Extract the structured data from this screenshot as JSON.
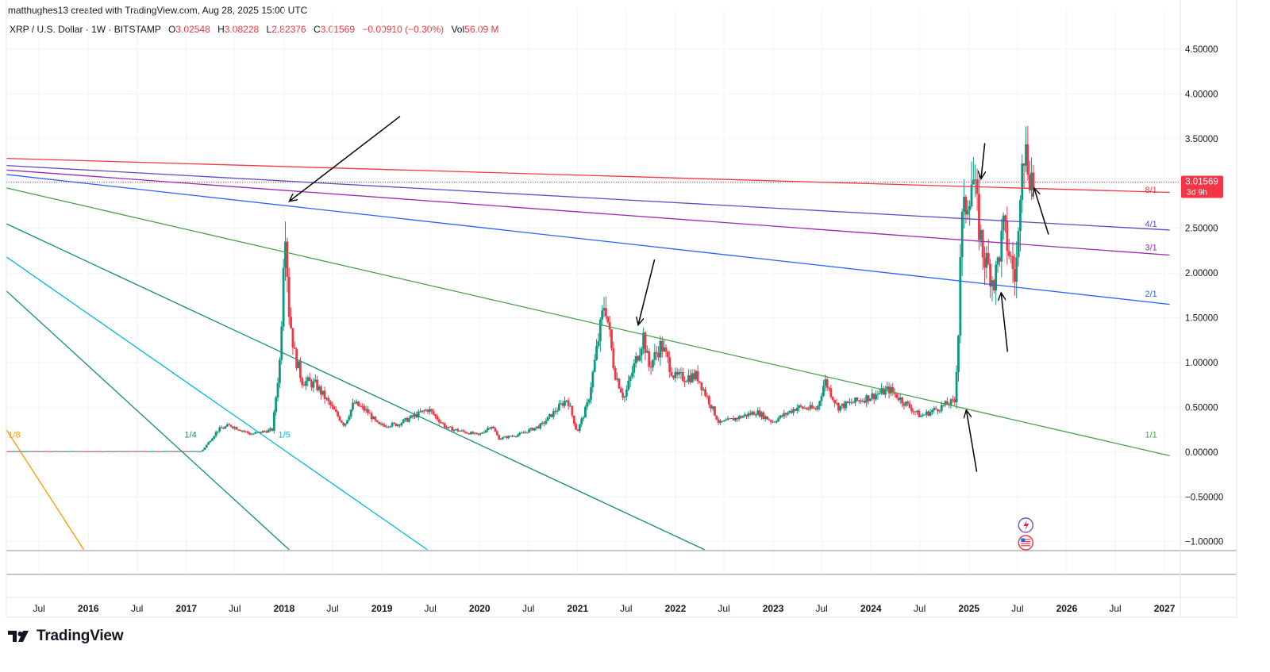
{
  "header": {
    "credit": "matthughes13 created with TradingView.com, Aug 28, 2025 15:00 UTC",
    "symbol": "XRP / U.S. Dollar · 1W · BITSTAMP",
    "open_label": "O",
    "open": "3.02548",
    "high_label": "H",
    "high": "3.08228",
    "low_label": "L",
    "low": "2.82376",
    "close_label": "C",
    "close": "3.01569",
    "change": "−0.00910 (−0.30%)",
    "vol_label": "Vol",
    "vol": "56.09 M"
  },
  "brand": {
    "name": "TradingView",
    "icon": "tradingview-logo-icon"
  },
  "price_badge": {
    "value": "3.01569",
    "countdown": "3d 9h",
    "color": "#f23645"
  },
  "colors": {
    "up": "#089981",
    "down": "#f23645",
    "grid": "#f0f3fa",
    "axis_text": "#131722"
  },
  "chart_data": {
    "type": "candlestick",
    "title": "",
    "y_axis": {
      "range": [
        -1.1,
        4.65
      ],
      "ticks": [
        "4.50000",
        "4.00000",
        "3.50000",
        "3.00000",
        "2.50000",
        "2.00000",
        "1.50000",
        "1.00000",
        "0.50000",
        "0.00000",
        "−0.50000",
        "−1.00000"
      ],
      "tick_values": [
        4.5,
        4.0,
        3.5,
        3.0,
        2.5,
        2.0,
        1.5,
        1.0,
        0.5,
        0.0,
        -0.5,
        -1.0
      ]
    },
    "x_axis": {
      "range": [
        "2015-03-01",
        "2027-03-01"
      ],
      "ticks": [
        {
          "label": "Jul",
          "date": "2015-07-01",
          "major": false
        },
        {
          "label": "2016",
          "date": "2016-01-01",
          "major": true
        },
        {
          "label": "Jul",
          "date": "2016-07-01",
          "major": false
        },
        {
          "label": "2017",
          "date": "2017-01-01",
          "major": true
        },
        {
          "label": "Jul",
          "date": "2017-07-01",
          "major": false
        },
        {
          "label": "2018",
          "date": "2018-01-01",
          "major": true
        },
        {
          "label": "Jul",
          "date": "2018-07-01",
          "major": false
        },
        {
          "label": "2019",
          "date": "2019-01-01",
          "major": true
        },
        {
          "label": "Jul",
          "date": "2019-07-01",
          "major": false
        },
        {
          "label": "2020",
          "date": "2020-01-01",
          "major": true
        },
        {
          "label": "Jul",
          "date": "2020-07-01",
          "major": false
        },
        {
          "label": "2021",
          "date": "2021-01-01",
          "major": true
        },
        {
          "label": "Jul",
          "date": "2021-07-01",
          "major": false
        },
        {
          "label": "2022",
          "date": "2022-01-01",
          "major": true
        },
        {
          "label": "Jul",
          "date": "2022-07-01",
          "major": false
        },
        {
          "label": "2023",
          "date": "2023-01-01",
          "major": true
        },
        {
          "label": "Jul",
          "date": "2023-07-01",
          "major": false
        },
        {
          "label": "2024",
          "date": "2024-01-01",
          "major": true
        },
        {
          "label": "Jul",
          "date": "2024-07-01",
          "major": false
        },
        {
          "label": "2025",
          "date": "2025-01-01",
          "major": true
        },
        {
          "label": "Jul",
          "date": "2025-07-01",
          "major": false
        },
        {
          "label": "2026",
          "date": "2026-01-01",
          "major": true
        },
        {
          "label": "Jul",
          "date": "2026-07-01",
          "major": false
        },
        {
          "label": "2027",
          "date": "2027-01-01",
          "major": true
        }
      ]
    },
    "price_path": [
      [
        "2015-03-01",
        0.01
      ],
      [
        "2017-03-01",
        0.01
      ],
      [
        "2017-05-01",
        0.25
      ],
      [
        "2017-06-15",
        0.3
      ],
      [
        "2017-09-01",
        0.2
      ],
      [
        "2017-11-20",
        0.25
      ],
      [
        "2017-12-20",
        1.1
      ],
      [
        "2018-01-05",
        2.7
      ],
      [
        "2018-01-20",
        1.6
      ],
      [
        "2018-02-10",
        1.1
      ],
      [
        "2018-03-10",
        0.8
      ],
      [
        "2018-05-01",
        0.75
      ],
      [
        "2018-08-15",
        0.3
      ],
      [
        "2018-09-20",
        0.55
      ],
      [
        "2018-11-10",
        0.45
      ],
      [
        "2018-12-20",
        0.3
      ],
      [
        "2019-03-01",
        0.31
      ],
      [
        "2019-06-25",
        0.48
      ],
      [
        "2019-09-01",
        0.27
      ],
      [
        "2019-12-31",
        0.19
      ],
      [
        "2020-02-15",
        0.3
      ],
      [
        "2020-03-15",
        0.15
      ],
      [
        "2020-06-01",
        0.2
      ],
      [
        "2020-08-20",
        0.3
      ],
      [
        "2020-11-25",
        0.6
      ],
      [
        "2020-12-31",
        0.22
      ],
      [
        "2021-02-10",
        0.55
      ],
      [
        "2021-04-14",
        1.7
      ],
      [
        "2021-05-20",
        0.9
      ],
      [
        "2021-06-25",
        0.6
      ],
      [
        "2021-09-05",
        1.3
      ],
      [
        "2021-09-25",
        0.95
      ],
      [
        "2021-11-10",
        1.2
      ],
      [
        "2021-12-31",
        0.83
      ],
      [
        "2022-03-25",
        0.85
      ],
      [
        "2022-06-15",
        0.32
      ],
      [
        "2022-11-01",
        0.45
      ],
      [
        "2022-12-31",
        0.34
      ],
      [
        "2023-04-01",
        0.5
      ],
      [
        "2023-06-15",
        0.48
      ],
      [
        "2023-07-14",
        0.8
      ],
      [
        "2023-09-01",
        0.5
      ],
      [
        "2023-12-31",
        0.62
      ],
      [
        "2024-03-11",
        0.7
      ],
      [
        "2024-07-05",
        0.4
      ],
      [
        "2024-10-15",
        0.54
      ],
      [
        "2024-11-10",
        0.56
      ],
      [
        "2024-11-25",
        1.4
      ],
      [
        "2024-12-03",
        2.5
      ],
      [
        "2025-01-16",
        3.1
      ],
      [
        "2025-02-05",
        2.6
      ],
      [
        "2025-02-25",
        2.2
      ],
      [
        "2025-04-07",
        1.9
      ],
      [
        "2025-05-12",
        2.5
      ],
      [
        "2025-06-22",
        1.95
      ],
      [
        "2025-07-05",
        2.3
      ],
      [
        "2025-07-18",
        3.5
      ],
      [
        "2025-08-10",
        3.25
      ],
      [
        "2025-08-28",
        3.0157
      ]
    ],
    "trendlines": [
      {
        "label": "",
        "color": "#f23645",
        "start": [
          "2015-03-01",
          3.28
        ],
        "end": [
          "2027-01-20",
          2.9
        ]
      },
      {
        "label": "",
        "color": "#5b4dbd",
        "start": [
          "2015-03-01",
          3.2
        ],
        "end": [
          "2027-01-20",
          2.48
        ]
      },
      {
        "label": "",
        "color": "#9c27b0",
        "start": [
          "2015-03-01",
          3.15
        ],
        "end": [
          "2027-01-20",
          2.2
        ]
      },
      {
        "label": "",
        "color": "#2962ff",
        "start": [
          "2015-03-01",
          3.1
        ],
        "end": [
          "2027-01-20",
          1.65
        ]
      },
      {
        "label": "",
        "color": "#43a047",
        "start": [
          "2015-03-01",
          2.95
        ],
        "end": [
          "2027-01-20",
          -0.04
        ]
      },
      {
        "label": "",
        "color": "#138d7a",
        "start": [
          "2015-03-01",
          2.55
        ],
        "end": [
          "2022-04-20",
          -1.09
        ]
      },
      {
        "label": "",
        "color": "#00bcd4",
        "start": [
          "2015-03-01",
          2.18
        ],
        "end": [
          "2019-06-20",
          -1.09
        ]
      },
      {
        "label": "",
        "color": "#138d7a",
        "start": [
          "2015-03-01",
          1.8
        ],
        "end": [
          "2018-01-20",
          -1.09
        ]
      },
      {
        "label": "",
        "color": "#ff9800",
        "start": [
          "2015-03-01",
          0.25
        ],
        "end": [
          "2015-12-15",
          -1.09
        ]
      }
    ],
    "fan_labels": [
      {
        "text": "8/1",
        "date": "2026-10-20",
        "price": 2.93,
        "color": "#f23645"
      },
      {
        "text": "4/1",
        "date": "2026-10-20",
        "price": 2.55,
        "color": "#5b4dbd"
      },
      {
        "text": "3/1",
        "date": "2026-10-20",
        "price": 2.29,
        "color": "#9c27b0"
      },
      {
        "text": "2/1",
        "date": "2026-10-20",
        "price": 1.77,
        "color": "#2962ff"
      },
      {
        "text": "1/1",
        "date": "2026-10-20",
        "price": 0.2,
        "color": "#43a047"
      },
      {
        "text": "1/4",
        "date": "2016-12-25",
        "price": 0.2,
        "color": "#138d7a"
      },
      {
        "text": "1/8",
        "date": "2015-03-08",
        "price": 0.2,
        "color": "#ff9800"
      },
      {
        "text": "1/5",
        "date": "2017-12-10",
        "price": 0.2,
        "color": "#00bcd4"
      }
    ],
    "arrows": [
      {
        "from": [
          "2019-03-10",
          3.75
        ],
        "to": [
          "2018-01-20",
          2.8
        ]
      },
      {
        "from": [
          "2021-10-15",
          2.15
        ],
        "to": [
          "2021-08-15",
          1.42
        ]
      },
      {
        "from": [
          "2025-03-01",
          3.45
        ],
        "to": [
          "2025-02-15",
          3.05
        ]
      },
      {
        "from": [
          "2025-10-25",
          2.43
        ],
        "to": [
          "2025-09-01",
          2.95
        ]
      },
      {
        "from": [
          "2025-05-25",
          1.12
        ],
        "to": [
          "2025-05-01",
          1.78
        ]
      },
      {
        "from": [
          "2025-01-30",
          -0.22
        ],
        "to": [
          "2024-12-22",
          0.47
        ]
      }
    ],
    "current_price": 3.01569,
    "last_bar": {
      "open": 3.02548,
      "high": 3.08228,
      "low": 2.82376,
      "close": 3.01569
    },
    "legend": "none",
    "grid": true
  }
}
